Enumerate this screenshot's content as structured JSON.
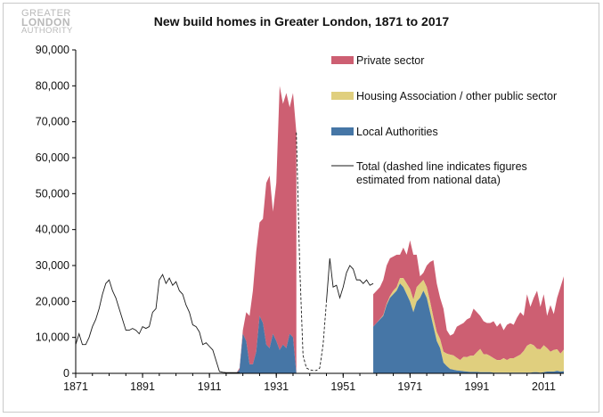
{
  "logo": {
    "line1": "GREATER",
    "line2": "LONDON",
    "line3": "AUTHORITY"
  },
  "colors": {
    "private": "#cd5f72",
    "ha": "#e0cf7e",
    "la": "#4676a6",
    "total": "#1a1a1a"
  },
  "chart_data": {
    "type": "area",
    "title": "New build homes in Greater London, 1871 to 2017",
    "xlim": [
      1871,
      2017
    ],
    "ylim": [
      0,
      90000
    ],
    "y_ticks": [
      0,
      10000,
      20000,
      30000,
      40000,
      50000,
      60000,
      70000,
      80000,
      90000
    ],
    "y_tick_labels": [
      "0",
      "10,000",
      "20,000",
      "30,000",
      "40,000",
      "50,000",
      "60,000",
      "70,000",
      "80,000",
      "90,000"
    ],
    "x_ticks": [
      1871,
      1891,
      1911,
      1931,
      1951,
      1971,
      1991,
      2011
    ],
    "x_tick_labels": [
      "1871",
      "1891",
      "1911",
      "1931",
      "1951",
      "1971",
      "1991",
      "2011"
    ],
    "legend": [
      {
        "key": "private",
        "label": "Private sector",
        "kind": "area"
      },
      {
        "key": "ha",
        "label": "Housing Association / other public sector",
        "kind": "area"
      },
      {
        "key": "la",
        "label": "Local Authorities",
        "kind": "area"
      },
      {
        "key": "total",
        "label_line1": "Total (dashed line indicates figures",
        "label_line2": "estimated from national data)",
        "kind": "line"
      }
    ],
    "legend_position": "top-right",
    "series_total_pre": {
      "x": [
        1871,
        1872,
        1873,
        1874,
        1875,
        1876,
        1877,
        1878,
        1879,
        1880,
        1881,
        1882,
        1883,
        1884,
        1885,
        1886,
        1887,
        1888,
        1889,
        1890,
        1891,
        1892,
        1893,
        1894,
        1895,
        1896,
        1897,
        1898,
        1899,
        1900,
        1901,
        1902,
        1903,
        1904,
        1905,
        1906,
        1907,
        1908,
        1909,
        1910,
        1911,
        1912,
        1913,
        1914,
        1915,
        1916,
        1917,
        1918,
        1919,
        1920
      ],
      "y": [
        8000,
        11000,
        8000,
        8000,
        10000,
        13000,
        15000,
        18000,
        22000,
        25000,
        26000,
        23000,
        21000,
        18000,
        15000,
        12000,
        12000,
        12500,
        12000,
        11000,
        13000,
        12500,
        13000,
        17000,
        18000,
        26000,
        27500,
        25000,
        26500,
        24500,
        25500,
        23000,
        22000,
        19000,
        17000,
        13500,
        13000,
        11500,
        8000,
        8500,
        7500,
        6500,
        3500,
        500,
        300,
        200,
        200,
        200,
        200,
        200
      ]
    },
    "series_dashed": {
      "x": [
        1937,
        1938,
        1939,
        1940,
        1941,
        1942,
        1943,
        1944,
        1945,
        1946
      ],
      "y": [
        67000,
        30000,
        5000,
        1500,
        1000,
        800,
        800,
        1500,
        8000,
        20000
      ]
    },
    "series_total_postwar": {
      "x": [
        1946,
        1947,
        1948,
        1949,
        1950,
        1951,
        1952,
        1953,
        1954,
        1955,
        1956,
        1957,
        1958,
        1959,
        1960
      ],
      "y": [
        20000,
        32000,
        24000,
        24500,
        21000,
        24000,
        28000,
        30000,
        29000,
        26000,
        26000,
        25000,
        26000,
        24500,
        25000
      ]
    },
    "series_interwar": {
      "x": [
        1919,
        1920,
        1921,
        1922,
        1923,
        1924,
        1925,
        1926,
        1927,
        1928,
        1929,
        1930,
        1931,
        1932,
        1933,
        1934,
        1935,
        1936,
        1937
      ],
      "la": [
        0,
        1000,
        11000,
        9000,
        2500,
        2500,
        6000,
        16000,
        14000,
        8000,
        7000,
        11000,
        9000,
        6500,
        8000,
        7000,
        11000,
        10000,
        0
      ],
      "total": [
        0,
        1500,
        12000,
        17000,
        16000,
        23000,
        34000,
        42000,
        43000,
        53000,
        55000,
        45000,
        53000,
        80000,
        75000,
        78000,
        74000,
        78000,
        67000
      ]
    },
    "series_modern": {
      "x": [
        1960,
        1961,
        1962,
        1963,
        1964,
        1965,
        1966,
        1967,
        1968,
        1969,
        1970,
        1971,
        1972,
        1973,
        1974,
        1975,
        1976,
        1977,
        1978,
        1979,
        1980,
        1981,
        1982,
        1983,
        1984,
        1985,
        1986,
        1987,
        1988,
        1989,
        1990,
        1991,
        1992,
        1993,
        1994,
        1995,
        1996,
        1997,
        1998,
        1999,
        2000,
        2001,
        2002,
        2003,
        2004,
        2005,
        2006,
        2007,
        2008,
        2009,
        2010,
        2011,
        2012,
        2013,
        2014,
        2015,
        2016,
        2017
      ],
      "la": [
        13000,
        14000,
        15000,
        16000,
        19000,
        21000,
        22000,
        23000,
        25000,
        24000,
        22000,
        20000,
        17000,
        20000,
        21000,
        23000,
        21000,
        17000,
        13000,
        9000,
        7000,
        3000,
        2000,
        1200,
        1000,
        800,
        700,
        600,
        500,
        400,
        400,
        400,
        300,
        300,
        300,
        300,
        200,
        200,
        200,
        200,
        200,
        200,
        200,
        200,
        200,
        200,
        200,
        200,
        300,
        300,
        200,
        300,
        500,
        500,
        500,
        700,
        500,
        600
      ],
      "ha": [
        0,
        0,
        100,
        200,
        300,
        500,
        1000,
        1000,
        1500,
        2500,
        3000,
        3500,
        3500,
        4000,
        4000,
        3000,
        3000,
        3000,
        2500,
        2500,
        2500,
        3000,
        3500,
        4000,
        4000,
        3500,
        3000,
        4000,
        4000,
        4500,
        4500,
        5500,
        6500,
        5000,
        5000,
        4500,
        4000,
        3500,
        3500,
        4000,
        3500,
        4000,
        4000,
        4500,
        5000,
        6000,
        7500,
        8000,
        7500,
        6500,
        6500,
        7500,
        6500,
        5500,
        6000,
        6000,
        5000,
        6000
      ],
      "total": [
        22000,
        23000,
        24000,
        26000,
        30000,
        32000,
        32500,
        33000,
        33000,
        35000,
        33000,
        37000,
        33000,
        33000,
        27000,
        28000,
        30000,
        31000,
        31500,
        25000,
        21000,
        18000,
        12000,
        10500,
        11000,
        13000,
        13500,
        14000,
        15000,
        15500,
        18000,
        17000,
        16000,
        14500,
        14000,
        14000,
        14500,
        13000,
        14000,
        12000,
        13500,
        14000,
        13500,
        15500,
        17000,
        16000,
        22000,
        18500,
        21000,
        23000,
        18500,
        22000,
        16000,
        19000,
        16500,
        21000,
        24000,
        27000
      ]
    }
  }
}
